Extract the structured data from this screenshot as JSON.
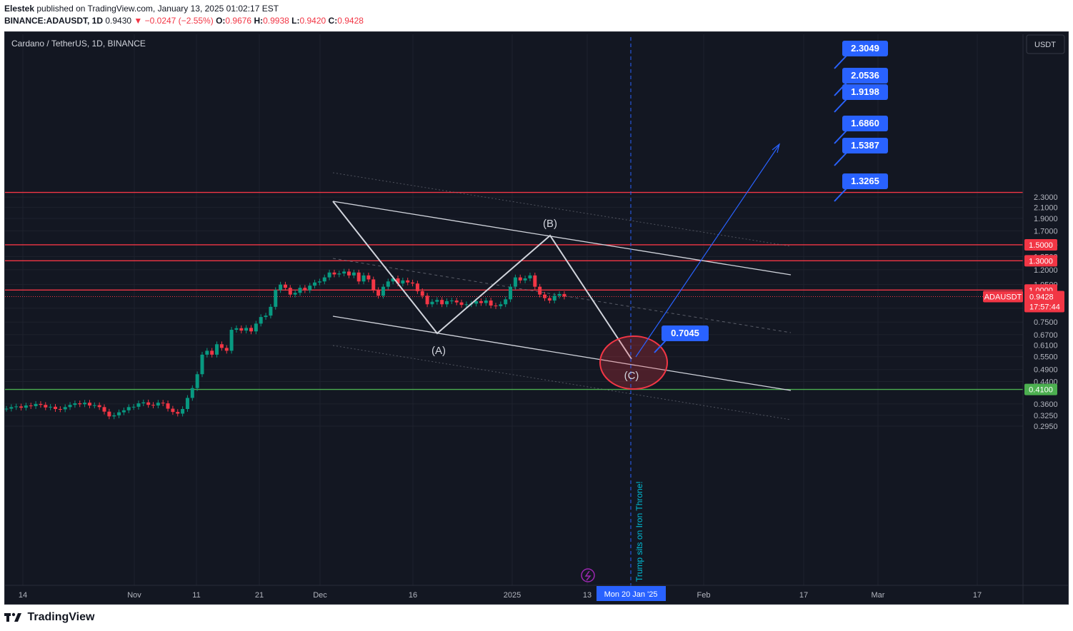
{
  "header": {
    "publisher": "Elestek",
    "published_text": "published on TradingView.com, January 13, 2025 01:02:17 EST",
    "symbol_line": "BINANCE:ADAUSDT, 1D",
    "last": "0.9430",
    "change": "−0.0247 (−2.55%)",
    "o_label": "O:",
    "o": "0.9676",
    "h_label": "H:",
    "h": "0.9938",
    "l_label": "L:",
    "l": "0.9420",
    "c_label": "C:",
    "c": "0.9428"
  },
  "chart_title": "Cardano / TetherUS, 1D, BINANCE",
  "currency_button": "USDT",
  "footer_brand": "TradingView",
  "colors": {
    "bg": "#131722",
    "up": "#089981",
    "down": "#f23645",
    "accent": "#2962ff",
    "grid": "#1e222d"
  },
  "chart_data": {
    "type": "candlestick",
    "symbol": "ADAUSDT",
    "scale": "log",
    "y_range": [
      0.27,
      2.5
    ],
    "x_ticks": [
      "14",
      "Nov",
      "11",
      "21",
      "Dec",
      "16",
      "2025",
      "13",
      "Feb",
      "17",
      "Mar",
      "17"
    ],
    "y_ticks": [
      "2.3000",
      "2.1000",
      "1.9000",
      "1.7000",
      "1.5000",
      "1.3500",
      "1.2000",
      "1.0500",
      "0.8500",
      "0.7500",
      "0.6700",
      "0.6100",
      "0.5500",
      "0.4900",
      "0.4400",
      "0.3600",
      "0.3250",
      "0.2950"
    ],
    "horizontal_levels": [
      {
        "value": 2.4,
        "label": "",
        "color": "#f23645"
      },
      {
        "value": 1.5,
        "label": "1.5000",
        "color": "#f23645"
      },
      {
        "value": 1.3,
        "label": "1.3000",
        "color": "#f23645"
      },
      {
        "value": 1.0,
        "label": "1.0000",
        "color": "#f23645"
      },
      {
        "value": 0.41,
        "label": "0.4100",
        "color": "#4caf50"
      }
    ],
    "last_price": {
      "label": "ADAUSDT",
      "value": "0.9428",
      "countdown": "17:57:44"
    },
    "targets": [
      "2.3049",
      "2.0536",
      "1.9198",
      "1.6860",
      "1.5387",
      "1.3265"
    ],
    "target_c": "0.7045",
    "wave_labels": [
      "(A)",
      "(B)",
      "(C)"
    ],
    "vertical_annotation": "Trump sits on Iron Throne!",
    "date_marker": "Mon 20 Jan '25"
  }
}
